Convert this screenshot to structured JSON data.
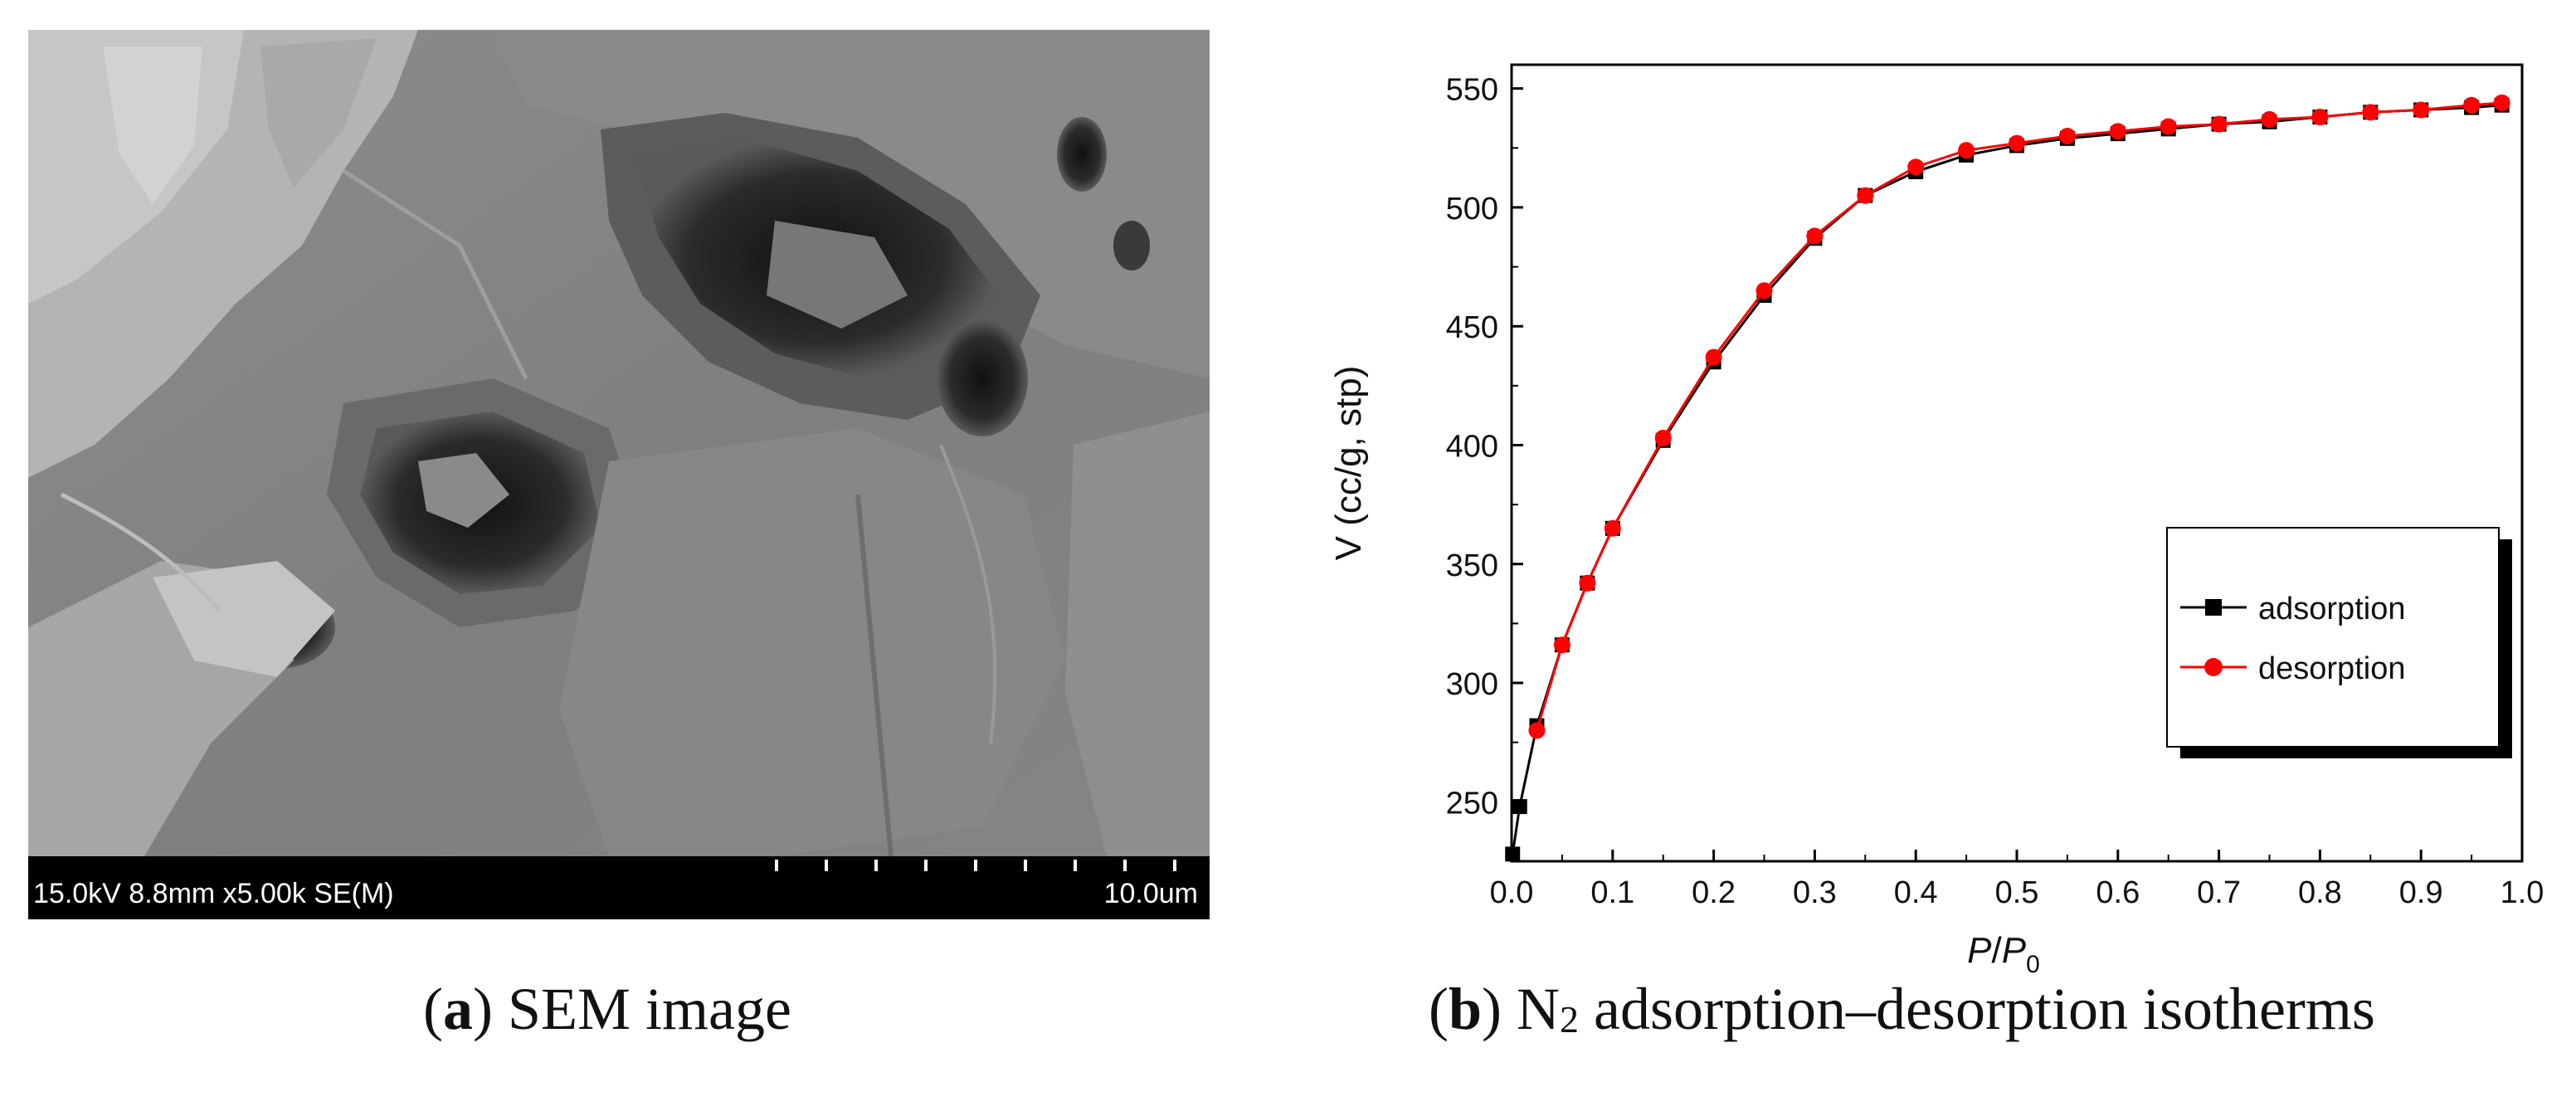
{
  "panel_a": {
    "banner_left": "15.0kV 8.8mm x5.00k SE(M)",
    "banner_right": "10.0um"
  },
  "captions": {
    "a": {
      "open": "(",
      "letter": "a",
      "close": ")",
      "text": " SEM image"
    },
    "b": {
      "open": "(",
      "letter": "b",
      "close": ")",
      "text_before": " N",
      "subscript": "2",
      "text_after": " adsorption–desorption isotherms"
    }
  },
  "chart_data": {
    "type": "line",
    "xlabel": {
      "p": "P",
      "slash": "/",
      "p2": "P",
      "sub": "0"
    },
    "ylabel": "V (cc/g, stp)",
    "xlim": [
      0,
      1.0
    ],
    "ylim": [
      225,
      560
    ],
    "x_ticks": [
      "0.0",
      "0.1",
      "0.2",
      "0.3",
      "0.4",
      "0.5",
      "0.6",
      "0.7",
      "0.8",
      "0.9",
      "1.0"
    ],
    "y_ticks": [
      "250",
      "300",
      "350",
      "400",
      "450",
      "500",
      "550"
    ],
    "grid": false,
    "legend_position": "center-right",
    "series": [
      {
        "name": "adsorption",
        "color": "#000000",
        "marker": "square",
        "x": [
          0.001,
          0.008,
          0.025,
          0.05,
          0.075,
          0.1,
          0.15,
          0.2,
          0.25,
          0.3,
          0.35,
          0.4,
          0.45,
          0.5,
          0.55,
          0.6,
          0.65,
          0.7,
          0.75,
          0.8,
          0.85,
          0.9,
          0.95,
          0.98
        ],
        "y": [
          228,
          248,
          282,
          316,
          342,
          365,
          402,
          435,
          463,
          487,
          505,
          515,
          522,
          526,
          529,
          531,
          533,
          535,
          536,
          538,
          540,
          541,
          542,
          543
        ]
      },
      {
        "name": "desorption",
        "color": "#ff0000",
        "marker": "circle",
        "x": [
          0.025,
          0.05,
          0.075,
          0.1,
          0.15,
          0.2,
          0.25,
          0.3,
          0.35,
          0.4,
          0.45,
          0.5,
          0.55,
          0.6,
          0.65,
          0.7,
          0.75,
          0.8,
          0.85,
          0.9,
          0.95,
          0.98
        ],
        "y": [
          280,
          316,
          342,
          365,
          403,
          437,
          465,
          488,
          505,
          517,
          524,
          527,
          530,
          532,
          534,
          535,
          537,
          538,
          540,
          541,
          543,
          544
        ]
      }
    ]
  }
}
